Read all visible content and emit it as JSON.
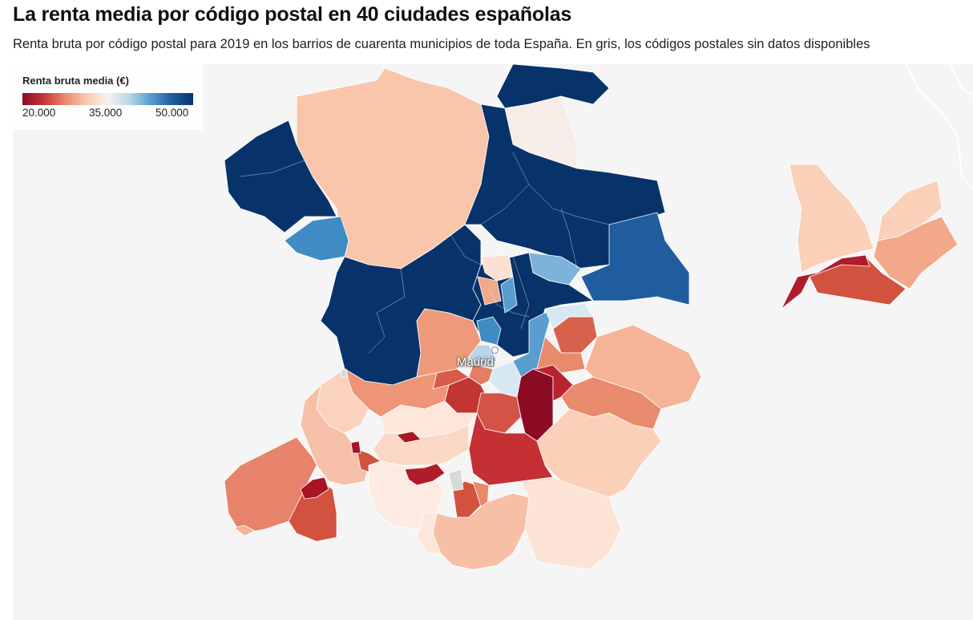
{
  "header": {
    "title": "La renta media por código postal en 40 ciudades españolas",
    "subtitle": "Renta bruta por código postal para 2019 en los barrios de cuarenta municipios de toda España. En gris, los códigos postales sin datos disponibles"
  },
  "legend": {
    "title": "Renta bruta media (€)",
    "ticks": [
      "20.000",
      "35.000",
      "50.000"
    ],
    "scale_min": 20000,
    "scale_mid": 35000,
    "scale_max": 50000,
    "colors": [
      "#8b0b24",
      "#c7373a",
      "#e8896a",
      "#f9c9b0",
      "#f7f2ef",
      "#b9d7ea",
      "#5a9dcf",
      "#1f5d9e",
      "#08336a"
    ]
  },
  "map": {
    "city_label": "Madrid",
    "no_data_color": "#d9d9d9",
    "background_color": "#f5f5f5"
  }
}
